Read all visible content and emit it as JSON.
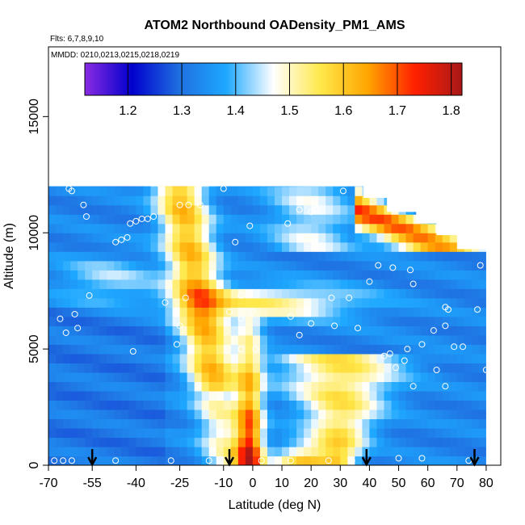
{
  "chart_data": {
    "type": "heatmap",
    "title": "ATOM2 Northbound OADensity_PM1_AMS",
    "notes": {
      "flights": "Flts: 6,7,8,9,10",
      "dates": "MMDD: 0210,0213,0215,0218,0219"
    },
    "xlabel": "Latitude (deg N)",
    "ylabel": "Altitude (m)",
    "xlim": [
      -70,
      85
    ],
    "ylim": [
      0,
      18000
    ],
    "x_ticks": [
      -70,
      -55,
      -40,
      -25,
      -10,
      0,
      10,
      20,
      30,
      40,
      50,
      60,
      70,
      80
    ],
    "x_tick_labels": [
      "-70",
      "-55",
      "-40",
      "-25",
      "-10",
      "0",
      "10",
      "20",
      "30",
      "40",
      "50",
      "60",
      "70",
      "80"
    ],
    "y_ticks": [
      0,
      5000,
      10000,
      15000
    ],
    "y_tick_labels": [
      "0",
      "5000",
      "10000",
      "15000"
    ],
    "colorbar": {
      "range": [
        1.12,
        1.82
      ],
      "ticks": [
        1.2,
        1.3,
        1.4,
        1.5,
        1.6,
        1.7,
        1.8
      ],
      "tick_labels": [
        "1.2",
        "1.3",
        "1.4",
        "1.5",
        "1.6",
        "1.7",
        "1.8"
      ],
      "colors": [
        "#8a2be2",
        "#0000cd",
        "#1f6fe0",
        "#1ea8ff",
        "#ffffff",
        "#ffe84a",
        "#ffa500",
        "#ff2000",
        "#a81818"
      ]
    },
    "data_extent": {
      "lat": [
        -70,
        80
      ],
      "alt_top_profile": [
        {
          "lat": -70,
          "alt": 12000
        },
        {
          "lat": 38,
          "alt": 12000
        },
        {
          "lat": 38,
          "alt": 11500
        },
        {
          "lat": 46,
          "alt": 11500
        },
        {
          "lat": 46,
          "alt": 10900
        },
        {
          "lat": 56,
          "alt": 10900
        },
        {
          "lat": 56,
          "alt": 10400
        },
        {
          "lat": 63,
          "alt": 10400
        },
        {
          "lat": 63,
          "alt": 9900
        },
        {
          "lat": 70,
          "alt": 9900
        },
        {
          "lat": 70,
          "alt": 9300
        },
        {
          "lat": 80,
          "alt": 9300
        },
        {
          "lat": 80,
          "alt": 0
        }
      ]
    },
    "arrow_latitudes": [
      -55,
      -8,
      39,
      76
    ],
    "observations": [
      {
        "lat": -63,
        "alt": 11900
      },
      {
        "lat": -62,
        "alt": 11800
      },
      {
        "lat": -58,
        "alt": 11200
      },
      {
        "lat": -57,
        "alt": 10700
      },
      {
        "lat": -42,
        "alt": 10400
      },
      {
        "lat": -40,
        "alt": 10500
      },
      {
        "lat": -38,
        "alt": 10600
      },
      {
        "lat": -36,
        "alt": 10600
      },
      {
        "lat": -34,
        "alt": 10700
      },
      {
        "lat": -47,
        "alt": 9600
      },
      {
        "lat": -45,
        "alt": 9700
      },
      {
        "lat": -43,
        "alt": 9800
      },
      {
        "lat": -25,
        "alt": 11200
      },
      {
        "lat": -22,
        "alt": 11200
      },
      {
        "lat": -18,
        "alt": 11200
      },
      {
        "lat": -10,
        "alt": 11900
      },
      {
        "lat": -6,
        "alt": 9600
      },
      {
        "lat": -1,
        "alt": 10300
      },
      {
        "lat": 12,
        "alt": 10400
      },
      {
        "lat": 16,
        "alt": 11000
      },
      {
        "lat": 20,
        "alt": 10900
      },
      {
        "lat": 22,
        "alt": 11000
      },
      {
        "lat": 31,
        "alt": 11800
      },
      {
        "lat": 43,
        "alt": 8600
      },
      {
        "lat": 48,
        "alt": 8500
      },
      {
        "lat": 54,
        "alt": 8400
      },
      {
        "lat": 40,
        "alt": 7900
      },
      {
        "lat": 55,
        "alt": 7800
      },
      {
        "lat": 78,
        "alt": 8600
      },
      {
        "lat": -56,
        "alt": 7300
      },
      {
        "lat": -30,
        "alt": 7000
      },
      {
        "lat": -23,
        "alt": 7200
      },
      {
        "lat": -4,
        "alt": 7300
      },
      {
        "lat": 27,
        "alt": 7200
      },
      {
        "lat": 33,
        "alt": 7200
      },
      {
        "lat": -61,
        "alt": 6500
      },
      {
        "lat": -66,
        "alt": 6300
      },
      {
        "lat": -8,
        "alt": 6600
      },
      {
        "lat": 0,
        "alt": 6600
      },
      {
        "lat": 13,
        "alt": 6400
      },
      {
        "lat": 20,
        "alt": 6100
      },
      {
        "lat": 28,
        "alt": 6000
      },
      {
        "lat": 36,
        "alt": 5900
      },
      {
        "lat": 66,
        "alt": 6800
      },
      {
        "lat": 67,
        "alt": 6700
      },
      {
        "lat": 77,
        "alt": 6700
      },
      {
        "lat": -64,
        "alt": 5700
      },
      {
        "lat": -60,
        "alt": 5900
      },
      {
        "lat": -25,
        "alt": 6000
      },
      {
        "lat": -4,
        "alt": 6300
      },
      {
        "lat": 16,
        "alt": 5600
      },
      {
        "lat": 62,
        "alt": 5800
      },
      {
        "lat": 66,
        "alt": 6000
      },
      {
        "lat": -26,
        "alt": 5200
      },
      {
        "lat": -41,
        "alt": 4900
      },
      {
        "lat": -4,
        "alt": 5000
      },
      {
        "lat": 1,
        "alt": 5000
      },
      {
        "lat": 53,
        "alt": 5000
      },
      {
        "lat": 58,
        "alt": 5200
      },
      {
        "lat": 69,
        "alt": 5100
      },
      {
        "lat": 72,
        "alt": 5100
      },
      {
        "lat": 45,
        "alt": 4700
      },
      {
        "lat": 47,
        "alt": 4800
      },
      {
        "lat": 49,
        "alt": 4200
      },
      {
        "lat": 52,
        "alt": 4500
      },
      {
        "lat": 63,
        "alt": 4100
      },
      {
        "lat": 80,
        "alt": 4100
      },
      {
        "lat": 55,
        "alt": 3400
      },
      {
        "lat": 66,
        "alt": 3400
      },
      {
        "lat": -68,
        "alt": 200
      },
      {
        "lat": -65,
        "alt": 200
      },
      {
        "lat": -62,
        "alt": 200
      },
      {
        "lat": -47,
        "alt": 200
      },
      {
        "lat": -28,
        "alt": 200
      },
      {
        "lat": -15,
        "alt": 200
      },
      {
        "lat": 3,
        "alt": 200
      },
      {
        "lat": 13,
        "alt": 200
      },
      {
        "lat": 26,
        "alt": 200
      },
      {
        "lat": 34,
        "alt": 200
      },
      {
        "lat": 50,
        "alt": 300
      },
      {
        "lat": 58,
        "alt": 300
      },
      {
        "lat": 74,
        "alt": 200
      }
    ]
  }
}
